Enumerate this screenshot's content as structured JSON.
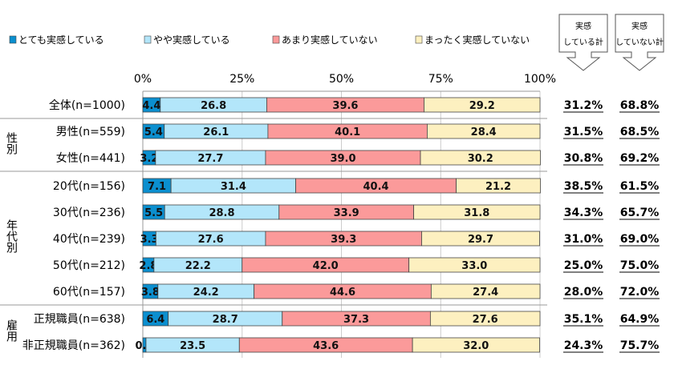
{
  "chart_data": {
    "type": "bar",
    "stacked": true,
    "orientation": "horizontal",
    "xlim": [
      0,
      100
    ],
    "x_ticks": [
      "0%",
      "25%",
      "50%",
      "75%",
      "100%"
    ],
    "grid": true,
    "legend_position": "top",
    "series": [
      {
        "name": "とても実感している",
        "color": "#0b8fcf",
        "values": [
          4.4,
          5.4,
          3.2,
          7.1,
          5.5,
          3.3,
          2.8,
          3.8,
          6.4,
          0.8
        ]
      },
      {
        "name": "やや実感している",
        "color": "#b3e6fa",
        "values": [
          26.8,
          26.1,
          27.7,
          31.4,
          28.8,
          27.6,
          22.2,
          24.2,
          28.7,
          23.5
        ]
      },
      {
        "name": "あまり実感していない",
        "color": "#fb9a9a",
        "values": [
          39.6,
          40.1,
          39.0,
          40.4,
          33.9,
          39.3,
          42.0,
          44.6,
          37.3,
          43.6
        ]
      },
      {
        "name": "まったく実感していない",
        "color": "#fdf0c0",
        "values": [
          29.2,
          28.4,
          30.2,
          21.2,
          31.8,
          29.7,
          33.0,
          27.4,
          27.6,
          32.0
        ]
      }
    ],
    "categories": [
      "全体(n=1000)",
      "男性(n=559)",
      "女性(n=441)",
      "20代(n=156)",
      "30代(n=236)",
      "40代(n=239)",
      "50代(n=212)",
      "60代(n=157)",
      "正規職員(n=638)",
      "非正規職員(n=362)"
    ],
    "groups": [
      {
        "label": "性別",
        "rows": [
          1,
          2
        ]
      },
      {
        "label": "年代別",
        "rows": [
          3,
          7
        ]
      },
      {
        "label": "雇用",
        "rows": [
          8,
          9
        ]
      }
    ],
    "totals_headers": [
      "実感している計",
      "実感していない計"
    ],
    "totals_header_lines": [
      [
        "実感",
        "している計"
      ],
      [
        "実感",
        "していない計"
      ]
    ],
    "totals": [
      [
        "31.2%",
        "68.8%"
      ],
      [
        "31.5%",
        "68.5%"
      ],
      [
        "30.8%",
        "69.2%"
      ],
      [
        "38.5%",
        "61.5%"
      ],
      [
        "34.3%",
        "65.7%"
      ],
      [
        "31.0%",
        "69.0%"
      ],
      [
        "25.0%",
        "75.0%"
      ],
      [
        "28.0%",
        "72.0%"
      ],
      [
        "35.1%",
        "64.9%"
      ],
      [
        "24.3%",
        "75.7%"
      ]
    ]
  }
}
